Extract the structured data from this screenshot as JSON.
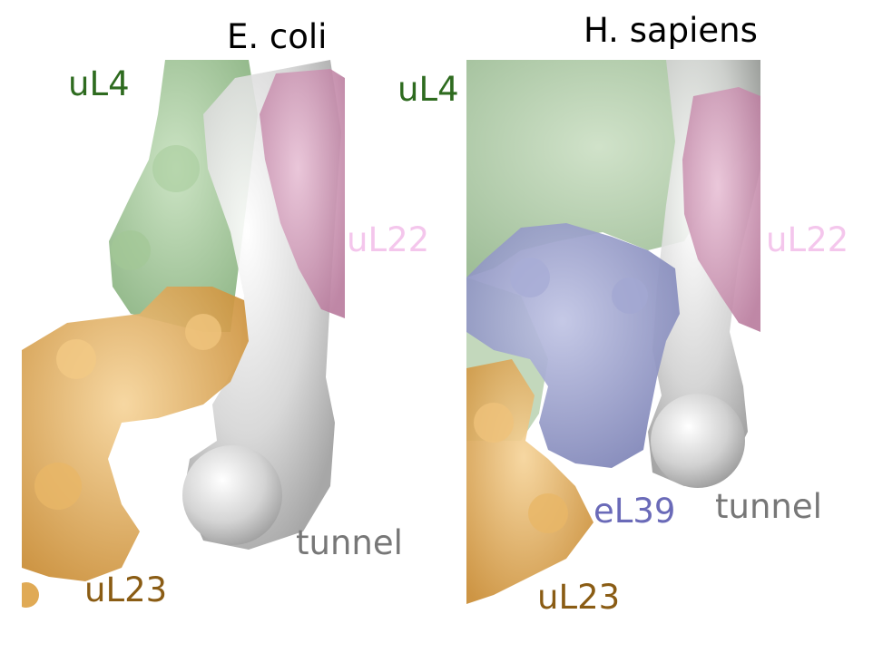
{
  "panels": {
    "ecoli": {
      "title": "E. coli",
      "labels": {
        "uL4": "uL4",
        "uL22": "uL22",
        "uL23": "uL23",
        "tunnel": "tunnel"
      }
    },
    "hsapiens": {
      "title": "H. sapiens",
      "labels": {
        "uL4": "uL4",
        "uL22": "uL22",
        "eL39": "eL39",
        "uL23": "uL23",
        "tunnel": "tunnel"
      }
    }
  },
  "colors": {
    "uL4_text": "#2e6b1f",
    "uL22_text": "#f4c6ec",
    "uL23_text": "#8a5c14",
    "tunnel_text": "#777777",
    "eL39_text": "#6a6ab8",
    "green_surface": "#93c088",
    "pink_surface": "#d39dbb",
    "orange_surface": "#e5b05e",
    "blue_surface": "#8c92c2",
    "tunnel_surface": "#d2d2d2"
  }
}
